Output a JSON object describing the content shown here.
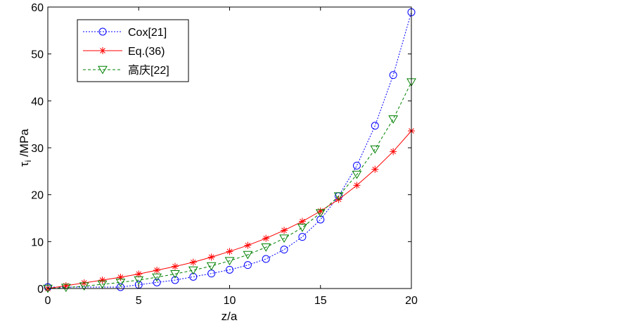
{
  "chart_data": {
    "type": "line",
    "xlabel": "z/a",
    "ylabel": "τ",
    "ylabel_subscript": "i",
    "ylabel_unit": " /MPa",
    "xlim": [
      0,
      20
    ],
    "ylim": [
      0,
      60
    ],
    "xticks": [
      0,
      5,
      10,
      15,
      20
    ],
    "yticks": [
      0,
      10,
      20,
      30,
      40,
      50,
      60
    ],
    "grid": false,
    "legend_position": "top-left",
    "series": [
      {
        "name": "Cox[21]",
        "color": "#0000ff",
        "line_style": "dotted",
        "marker": "circle",
        "x": [
          0,
          4,
          5,
          6,
          7,
          8,
          9,
          10,
          11,
          12,
          13,
          14,
          15,
          16,
          17,
          18,
          19,
          20
        ],
        "y": [
          0.3,
          0.3,
          0.8,
          1.3,
          1.8,
          2.5,
          3.2,
          4.0,
          5.0,
          6.3,
          8.3,
          11.0,
          14.7,
          19.7,
          26.2,
          34.7,
          45.5,
          58.9
        ]
      },
      {
        "name": "Eq.(36)",
        "color": "#ff0000",
        "line_style": "solid",
        "marker": "star",
        "x": [
          0,
          1,
          2,
          3,
          4,
          5,
          6,
          7,
          8,
          9,
          10,
          11,
          12,
          13,
          14,
          15,
          16,
          17,
          18,
          19,
          20
        ],
        "y": [
          0,
          0.6,
          1.2,
          1.8,
          2.4,
          3.1,
          3.9,
          4.7,
          5.6,
          6.7,
          7.9,
          9.2,
          10.7,
          12.4,
          14.3,
          16.5,
          19.0,
          22.0,
          25.4,
          29.2,
          33.6
        ]
      },
      {
        "name": "高庆[22]",
        "color": "#008000",
        "line_style": "dashed",
        "marker": "triangle-down",
        "x": [
          0,
          1,
          2,
          3,
          4,
          5,
          6,
          7,
          8,
          9,
          10,
          11,
          12,
          13,
          14,
          15,
          16,
          17,
          18,
          19,
          20
        ],
        "y": [
          0,
          0.2,
          0.5,
          0.9,
          1.3,
          1.8,
          2.4,
          3.1,
          3.9,
          4.8,
          5.9,
          7.2,
          8.8,
          10.7,
          13.0,
          16.1,
          19.7,
          24.3,
          29.7,
          36.1,
          44.0
        ]
      }
    ]
  }
}
